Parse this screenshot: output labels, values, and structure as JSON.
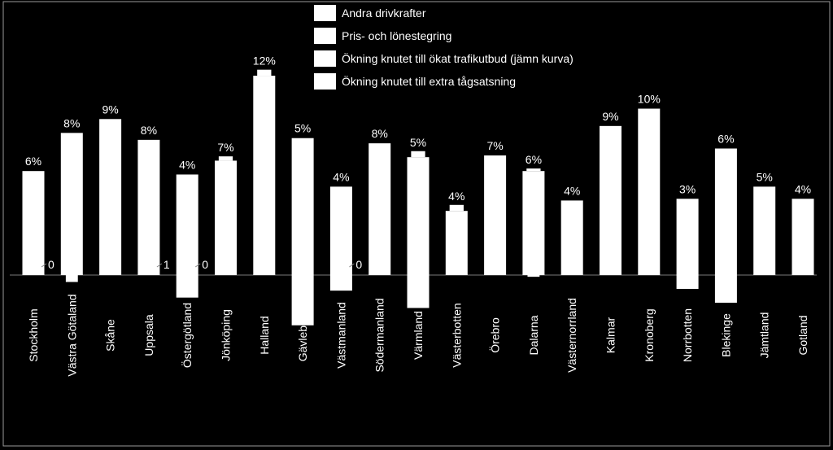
{
  "chart_data": {
    "type": "bar",
    "stacked": true,
    "legend_position": "top-center",
    "grid": false,
    "colors": {
      "background": "#000000",
      "bars": "#ffffff",
      "text": "#ffffff"
    },
    "series": [
      {
        "name": "Andra drivkrafter"
      },
      {
        "name": "Pris- och lönestegring"
      },
      {
        "name": "Ökning knutet till ökat trafikutbud (jämn kurva)"
      },
      {
        "name": "Ökning knutet till extra tågsatsning"
      }
    ],
    "categories": [
      "Stockholm",
      "Västra Götaland",
      "Skåne",
      "Uppsala",
      "Östergötland",
      "Jönköping",
      "Halland",
      "Gävleborg",
      "Västmanland",
      "Södermanland",
      "Värmland",
      "Västerbotten",
      "Örebro",
      "Dalarna",
      "Västernorrland",
      "Kalmar",
      "Kronoberg",
      "Norrbotten",
      "Blekinge",
      "Jämtland",
      "Gotland"
    ],
    "total_labels": [
      "6%",
      "8%",
      "9%",
      "8%",
      "4%",
      "7%",
      "12%",
      "5%",
      "4%",
      "8%",
      "5%",
      "4%",
      "7%",
      "6%",
      "4%",
      "9%",
      "10%",
      "3%",
      "6%",
      "5%",
      "4%"
    ],
    "totals": [
      6,
      8,
      9,
      8,
      4,
      7,
      12,
      5,
      4,
      8,
      5,
      4,
      7,
      6,
      4,
      9,
      10,
      3,
      6,
      5,
      4
    ],
    "positive_part": [
      6,
      8.2,
      9,
      7.8,
      5.8,
      6.6,
      11.5,
      7.9,
      5.1,
      7.6,
      6.8,
      3.7,
      6.9,
      6.0,
      4.3,
      8.6,
      9.6,
      4.4,
      7.3,
      5.1,
      4.4
    ],
    "cap_part": [
      0,
      0,
      0,
      0,
      0,
      0.2,
      0.3,
      0,
      0,
      0,
      0.3,
      0.3,
      0,
      0.1,
      0,
      0,
      0,
      0,
      0,
      0,
      0
    ],
    "negative_part": [
      0,
      -0.4,
      0,
      0,
      -1.3,
      0,
      0,
      -2.9,
      -0.9,
      0,
      -1.9,
      0,
      0,
      -0.1,
      0,
      0,
      0,
      -0.8,
      -1.6,
      0,
      0
    ],
    "small_labels": [
      {
        "category": "Stockholm",
        "text": "0"
      },
      {
        "category": "Uppsala",
        "text": "1"
      },
      {
        "category": "Östergötland",
        "text": "0"
      },
      {
        "category": "Västmanland",
        "text": "0"
      }
    ],
    "ylim": [
      -3,
      12.5
    ]
  }
}
